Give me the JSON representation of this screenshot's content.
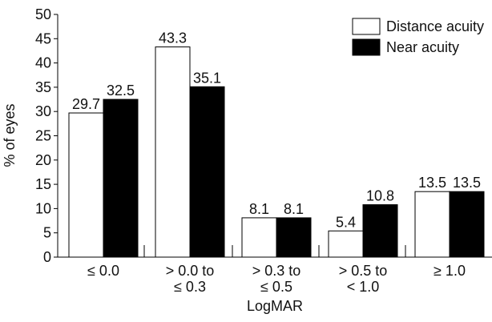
{
  "chart_data": {
    "type": "bar",
    "title": "",
    "xlabel": "LogMAR",
    "ylabel": "% of eyes",
    "ylim": [
      0,
      50
    ],
    "yticks": [
      "0",
      "5",
      "10",
      "15",
      "20",
      "25",
      "30",
      "35",
      "40",
      "45",
      "50"
    ],
    "categories": [
      [
        "≤ 0.0"
      ],
      [
        "> 0.0 to",
        "≤ 0.3"
      ],
      [
        "> 0.3 to",
        "≤ 0.5"
      ],
      [
        "> 0.5 to",
        "< 1.0"
      ],
      [
        "≥ 1.0"
      ]
    ],
    "series": [
      {
        "name": "Distance acuity",
        "color": "#ffffff",
        "values": [
          29.7,
          43.3,
          8.1,
          5.4,
          13.5
        ],
        "labels": [
          "29.7",
          "43.3",
          "8.1",
          "5.4",
          "13.5"
        ]
      },
      {
        "name": "Near acuity",
        "color": "#000000",
        "values": [
          32.5,
          35.1,
          8.1,
          10.8,
          13.5
        ],
        "labels": [
          "32.5",
          "35.1",
          "8.1",
          "10.8",
          "13.5"
        ]
      }
    ],
    "legend": {
      "placement": "top-right"
    },
    "grid": false
  }
}
